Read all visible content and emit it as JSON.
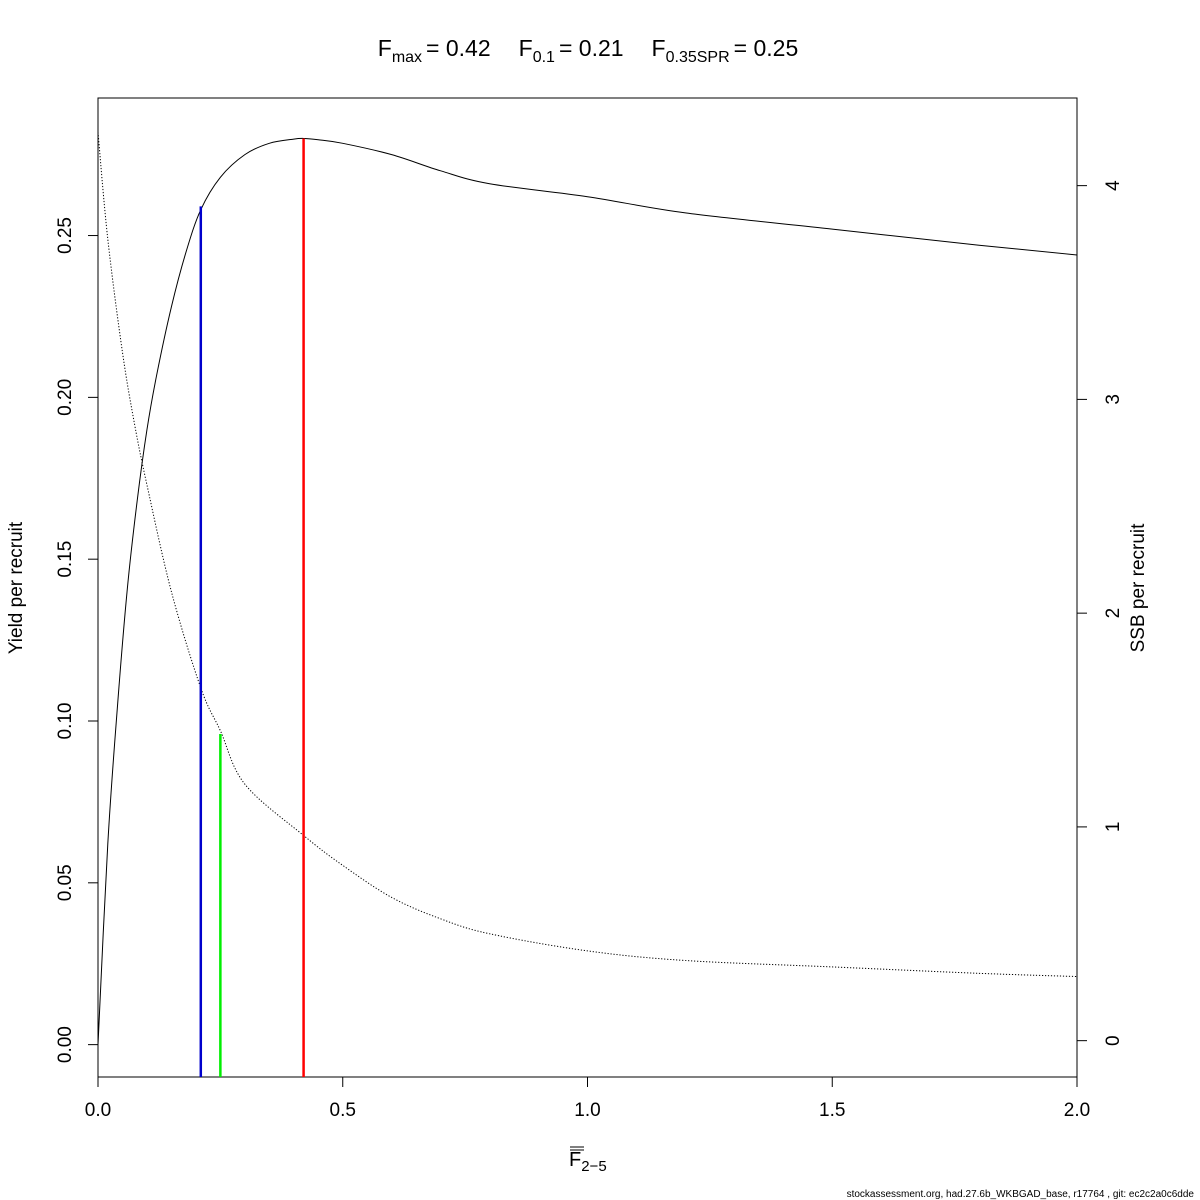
{
  "chart_data": {
    "type": "line",
    "title": {
      "fmax_sym": "F",
      "fmax_sub": "max",
      "fmax_val": "= 0.42",
      "f01_sym": "F",
      "f01_sub": "0.1",
      "f01_val": "= 0.21",
      "fspr_sym": "F",
      "fspr_sub": "0.35SPR",
      "fspr_val": "= 0.25"
    },
    "xlabel": {
      "sym": "F",
      "sub": "2−5"
    },
    "ylabel_left": "Yield per recruit",
    "ylabel_right": "SSB per recruit",
    "xlim": [
      0,
      2
    ],
    "ylim_left": [
      -0.01,
      0.2925
    ],
    "ylim_right": [
      -0.17,
      4.41
    ],
    "x_ticks": [
      "0.0",
      "0.5",
      "1.0",
      "1.5",
      "2.0"
    ],
    "x_tick_values": [
      0,
      0.5,
      1.0,
      1.5,
      2.0
    ],
    "y_left_ticks": [
      "0.00",
      "0.05",
      "0.10",
      "0.15",
      "0.20",
      "0.25"
    ],
    "y_left_tick_values": [
      0,
      0.05,
      0.1,
      0.15,
      0.2,
      0.25
    ],
    "y_right_ticks": [
      "0",
      "1",
      "2",
      "3",
      "4"
    ],
    "y_right_tick_values": [
      0,
      1,
      2,
      3,
      4
    ],
    "series": [
      {
        "axis": "left",
        "style": "solid",
        "color": "#000000",
        "x": [
          0,
          0.02,
          0.04,
          0.06,
          0.08,
          0.1,
          0.12,
          0.15,
          0.18,
          0.21,
          0.25,
          0.3,
          0.35,
          0.4,
          0.42,
          0.45,
          0.5,
          0.6,
          0.7,
          0.8,
          1.0,
          1.2,
          1.5,
          1.8,
          2.0
        ],
        "y": [
          0,
          0.062,
          0.105,
          0.141,
          0.168,
          0.19,
          0.207,
          0.228,
          0.245,
          0.258,
          0.268,
          0.275,
          0.2785,
          0.2798,
          0.28,
          0.2796,
          0.2785,
          0.275,
          0.27,
          0.266,
          0.262,
          0.257,
          0.252,
          0.247,
          0.244
        ]
      },
      {
        "axis": "right",
        "style": "dotted",
        "color": "#000000",
        "x": [
          0,
          0.02,
          0.05,
          0.075,
          0.1,
          0.15,
          0.21,
          0.25,
          0.3,
          0.42,
          0.5,
          0.6,
          0.7,
          0.8,
          1.0,
          1.2,
          1.5,
          1.8,
          2.0
        ],
        "y": [
          4.25,
          3.75,
          3.22,
          2.88,
          2.6,
          2.1,
          1.65,
          1.45,
          1.2,
          0.96,
          0.82,
          0.67,
          0.57,
          0.5,
          0.42,
          0.375,
          0.345,
          0.315,
          0.3
        ]
      }
    ],
    "reference_lines": [
      {
        "x": 0.21,
        "y_top": 0.259,
        "color": "#0000cc"
      },
      {
        "x": 0.25,
        "y_top": 0.096,
        "color": "#00ee00"
      },
      {
        "x": 0.42,
        "y_top": 0.28,
        "color": "#ff0000"
      }
    ]
  },
  "footer": "stockassessment.org, had.27.6b_WKBGAD_base, r17764 , git: ec2c2a0c6dde"
}
